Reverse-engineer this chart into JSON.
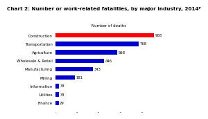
{
  "title": "Chart 2: Number or work-related fatalities, by major industry, 2014ᵖ",
  "xlabel": "Number of deaths",
  "categories": [
    "Finance",
    "Utilities",
    "Information",
    "Mining",
    "Manufacturing",
    "Wholesale & Retail",
    "Agriculture",
    "Transportation",
    "Construction"
  ],
  "values": [
    29,
    33,
    33,
    181,
    343,
    446,
    568,
    768,
    908
  ],
  "bar_colors": [
    "#0000cd",
    "#0000cd",
    "#0000cd",
    "#0000cd",
    "#0000cd",
    "#0000cd",
    "#0000cd",
    "#0000cd",
    "#ff0000"
  ],
  "xlim": [
    0,
    990
  ],
  "label_fontsize": 4.0,
  "value_fontsize": 3.8,
  "title_fontsize": 5.2,
  "xlabel_fontsize": 4.0,
  "bar_height": 0.52,
  "background_color": "#ffffff"
}
